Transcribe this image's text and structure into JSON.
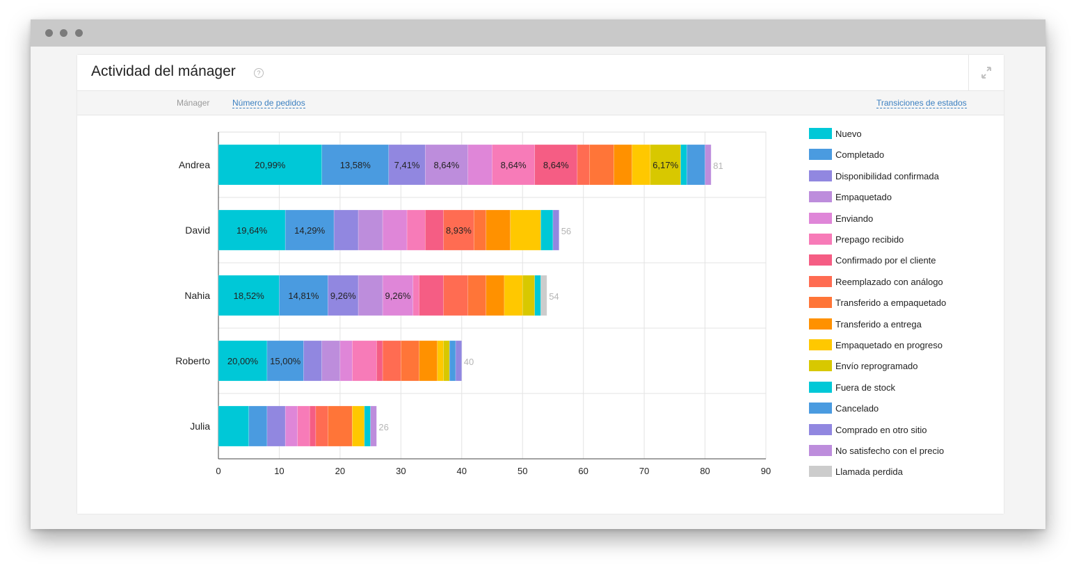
{
  "window": {
    "dots": 3
  },
  "header": {
    "title": "Actividad del mánager",
    "help_glyph": "?",
    "help_icon": "question-circle-icon",
    "expand_icon": "expand-icon"
  },
  "toolbar": {
    "manager_label": "Mánager",
    "orders_link": "Número de pedidos",
    "transitions_link": "Transiciones de estados"
  },
  "chart_data": {
    "type": "bar",
    "orientation": "horizontal",
    "stacked": true,
    "title": "",
    "xlabel": "",
    "ylabel": "",
    "xlim": [
      0,
      90
    ],
    "x_ticks": [
      0,
      10,
      20,
      30,
      40,
      50,
      60,
      70,
      80,
      90
    ],
    "grid": true,
    "legend_position": "right",
    "categories": [
      "Andrea",
      "David",
      "Nahia",
      "Roberto",
      "Julia"
    ],
    "totals": [
      81,
      56,
      54,
      40,
      26
    ],
    "series": [
      {
        "name": "Nuevo",
        "color": "#00c8d7",
        "values": [
          17,
          11,
          10,
          8,
          5
        ],
        "labels": [
          "20,99%",
          "19,64%",
          "18,52%",
          "20,00%",
          ""
        ]
      },
      {
        "name": "Completado",
        "color": "#4a9be0",
        "values": [
          11,
          8,
          8,
          6,
          3
        ],
        "labels": [
          "13,58%",
          "14,29%",
          "14,81%",
          "15,00%",
          ""
        ]
      },
      {
        "name": "Disponibilidad confirmada",
        "color": "#9187e0",
        "values": [
          6,
          4,
          5,
          3,
          3
        ],
        "labels": [
          "7,41%",
          "",
          "9,26%",
          "",
          ""
        ]
      },
      {
        "name": "Empaquetado",
        "color": "#bd8ddc",
        "values": [
          7,
          4,
          4,
          3,
          0
        ],
        "labels": [
          "8,64%",
          "",
          "",
          "",
          ""
        ]
      },
      {
        "name": "Enviando",
        "color": "#df86d8",
        "values": [
          4,
          4,
          5,
          2,
          2
        ],
        "labels": [
          "",
          "",
          "9,26%",
          "",
          ""
        ]
      },
      {
        "name": "Prepago recibido",
        "color": "#f77bb8",
        "values": [
          7,
          3,
          1,
          4,
          2
        ],
        "labels": [
          "8,64%",
          "",
          "",
          "",
          ""
        ]
      },
      {
        "name": "Confirmado por el cliente",
        "color": "#f55d84",
        "values": [
          7,
          3,
          4,
          1,
          1
        ],
        "labels": [
          "8,64%",
          "",
          "",
          "",
          ""
        ]
      },
      {
        "name": "Reemplazado con análogo",
        "color": "#ff6c52",
        "values": [
          2,
          5,
          4,
          3,
          2
        ],
        "labels": [
          "",
          "8,93%",
          "",
          "",
          ""
        ]
      },
      {
        "name": "Transferido a empaquetado",
        "color": "#ff7538",
        "values": [
          4,
          2,
          3,
          3,
          4
        ],
        "labels": [
          "",
          "",
          "",
          "",
          ""
        ]
      },
      {
        "name": "Transferido a entrega",
        "color": "#ff9100",
        "values": [
          3,
          4,
          3,
          3,
          0
        ],
        "labels": [
          "",
          "",
          "",
          "",
          ""
        ]
      },
      {
        "name": "Empaquetado en progreso",
        "color": "#ffc800",
        "values": [
          3,
          5,
          3,
          1,
          2
        ],
        "labels": [
          "",
          "",
          "",
          "",
          ""
        ]
      },
      {
        "name": "Envío reprogramado",
        "color": "#d8c800",
        "values": [
          5,
          0,
          2,
          1,
          0
        ],
        "labels": [
          "6,17%",
          "",
          "",
          "",
          ""
        ]
      },
      {
        "name": "Fuera de stock",
        "color": "#00c8d7",
        "values": [
          1,
          2,
          1,
          0,
          1
        ],
        "labels": [
          "",
          "",
          "",
          "",
          ""
        ]
      },
      {
        "name": "Cancelado",
        "color": "#4a9be0",
        "values": [
          3,
          0,
          0,
          1,
          0
        ],
        "labels": [
          "",
          "",
          "",
          "",
          ""
        ]
      },
      {
        "name": "Comprado en otro sitio",
        "color": "#9187e0",
        "values": [
          0,
          1,
          0,
          1,
          0
        ],
        "labels": [
          "",
          "",
          "",
          "",
          ""
        ]
      },
      {
        "name": "No satisfecho con el precio",
        "color": "#bd8ddc",
        "values": [
          1,
          0,
          0,
          0,
          1
        ],
        "labels": [
          "",
          "",
          "",
          "",
          ""
        ]
      },
      {
        "name": "Llamada perdida",
        "color": "#cccccc",
        "values": [
          0,
          0,
          1,
          0,
          0
        ],
        "labels": [
          "",
          "",
          "",
          "",
          ""
        ]
      }
    ]
  }
}
